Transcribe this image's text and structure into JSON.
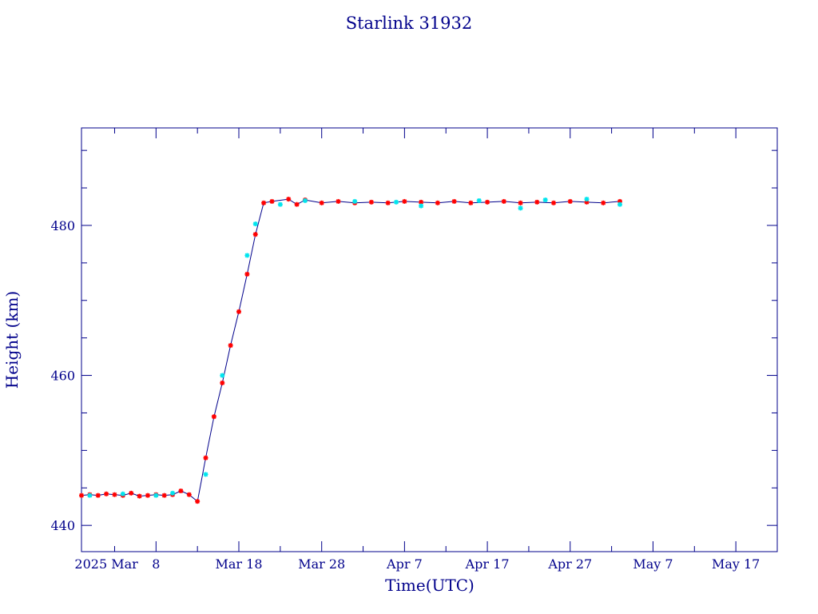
{
  "chart_data": {
    "type": "scatter",
    "title": "Starlink 31932",
    "xlabel": "Time(UTC)",
    "ylabel": "Height (km)",
    "x_range": [
      "2025-02-27",
      "2025-05-22"
    ],
    "ylim": [
      436.5,
      493
    ],
    "y_ticks": [
      440,
      460,
      480
    ],
    "y_tick_labels": [
      "440",
      "460",
      "480"
    ],
    "x_ticks": [
      {
        "date": "2025-03-08",
        "label": "8"
      },
      {
        "date": "2025-03-18",
        "label": "Mar 18"
      },
      {
        "date": "2025-03-28",
        "label": "Mar 28"
      },
      {
        "date": "2025-04-07",
        "label": "Apr  7"
      },
      {
        "date": "2025-04-17",
        "label": "Apr 17"
      },
      {
        "date": "2025-04-27",
        "label": "Apr 27"
      },
      {
        "date": "2025-05-07",
        "label": "May  7"
      },
      {
        "date": "2025-05-17",
        "label": "May 17"
      }
    ],
    "x_year_label": {
      "date": "2025-03-02",
      "label": "2025 Mar"
    },
    "grid": false,
    "colors": {
      "axis": "#00008b",
      "line": "#00008b",
      "red_markers": "#ff0000",
      "cyan_markers": "#00e5ee"
    },
    "series": [
      {
        "marker": "asterisk",
        "color": "#ff0000",
        "line": true,
        "points": [
          [
            "2025-02-27",
            444.0
          ],
          [
            "2025-02-28",
            444.1
          ],
          [
            "2025-03-01",
            444.0
          ],
          [
            "2025-03-02",
            444.2
          ],
          [
            "2025-03-03",
            444.1
          ],
          [
            "2025-03-04",
            444.0
          ],
          [
            "2025-03-05",
            444.3
          ],
          [
            "2025-03-06",
            443.9
          ],
          [
            "2025-03-07",
            444.0
          ],
          [
            "2025-03-08",
            444.1
          ],
          [
            "2025-03-09",
            444.0
          ],
          [
            "2025-03-10",
            444.1
          ],
          [
            "2025-03-11",
            444.6
          ],
          [
            "2025-03-12",
            444.1
          ],
          [
            "2025-03-13",
            443.2
          ],
          [
            "2025-03-14",
            449.0
          ],
          [
            "2025-03-15",
            454.5
          ],
          [
            "2025-03-16",
            459.0
          ],
          [
            "2025-03-17",
            464.0
          ],
          [
            "2025-03-18",
            468.5
          ],
          [
            "2025-03-19",
            473.5
          ],
          [
            "2025-03-20",
            478.8
          ],
          [
            "2025-03-21",
            483.0
          ],
          [
            "2025-03-22",
            483.2
          ],
          [
            "2025-03-24",
            483.5
          ],
          [
            "2025-03-25",
            482.8
          ],
          [
            "2025-03-26",
            483.4
          ],
          [
            "2025-03-28",
            483.0
          ],
          [
            "2025-03-30",
            483.2
          ],
          [
            "2025-04-01",
            483.0
          ],
          [
            "2025-04-03",
            483.1
          ],
          [
            "2025-04-05",
            483.0
          ],
          [
            "2025-04-07",
            483.2
          ],
          [
            "2025-04-09",
            483.1
          ],
          [
            "2025-04-11",
            483.0
          ],
          [
            "2025-04-13",
            483.2
          ],
          [
            "2025-04-15",
            483.0
          ],
          [
            "2025-04-17",
            483.1
          ],
          [
            "2025-04-19",
            483.2
          ],
          [
            "2025-04-21",
            483.0
          ],
          [
            "2025-04-23",
            483.1
          ],
          [
            "2025-04-25",
            483.0
          ],
          [
            "2025-04-27",
            483.2
          ],
          [
            "2025-04-29",
            483.1
          ],
          [
            "2025-05-01",
            483.0
          ],
          [
            "2025-05-03",
            483.2
          ]
        ]
      },
      {
        "marker": "asterisk",
        "color": "#00e5ee",
        "line": false,
        "points": [
          [
            "2025-02-28",
            444.0
          ],
          [
            "2025-03-04",
            444.2
          ],
          [
            "2025-03-08",
            444.0
          ],
          [
            "2025-03-10",
            444.3
          ],
          [
            "2025-03-14",
            446.8
          ],
          [
            "2025-03-16",
            460.0
          ],
          [
            "2025-03-19",
            476.0
          ],
          [
            "2025-03-20",
            480.2
          ],
          [
            "2025-03-23",
            482.8
          ],
          [
            "2025-03-26",
            483.3
          ],
          [
            "2025-04-01",
            483.2
          ],
          [
            "2025-04-06",
            483.1
          ],
          [
            "2025-04-09",
            482.6
          ],
          [
            "2025-04-16",
            483.3
          ],
          [
            "2025-04-21",
            482.3
          ],
          [
            "2025-04-24",
            483.4
          ],
          [
            "2025-04-29",
            483.5
          ],
          [
            "2025-05-03",
            482.8
          ]
        ]
      }
    ]
  }
}
